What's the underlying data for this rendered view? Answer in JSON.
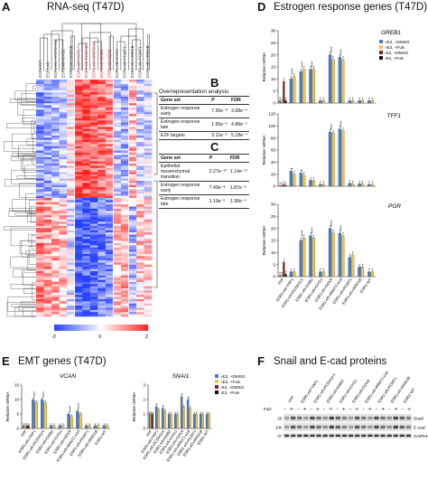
{
  "panels": {
    "A": {
      "letter": "A",
      "title": "RNA-seq (T47D)"
    },
    "B": {
      "letter": "B"
    },
    "C": {
      "letter": "C"
    },
    "D": {
      "letter": "D",
      "title": "Estrogen response genes (T47D)"
    },
    "E": {
      "letter": "E",
      "title": "EMT genes (T47D)"
    },
    "F": {
      "letter": "F",
      "title": "Snail and E-cad proteins"
    }
  },
  "heatmap": {
    "samples": [
      {
        "label": "ESR1-WT",
        "color": "#333333"
      },
      {
        "label": "ESR1-e6",
        "color": "#333333"
      },
      {
        "label": "ESR1-e6>ARNT2-e18",
        "color": "#333333"
      },
      {
        "label": "ESR1-e6>GYG1",
        "color": "#333333"
      },
      {
        "label": "ESR1-e6>ARID1B",
        "color": "#333333"
      },
      {
        "label": "ESR1-e6>YAP1",
        "color": "#d62728"
      },
      {
        "label": "ESR1-e6>PCDH11X",
        "color": "#d62728"
      },
      {
        "label": "ESR1-e6>ARNT2-e2",
        "color": "#d62728"
      },
      {
        "label": "ESR1-e6>DAB2",
        "color": "#d62728"
      },
      {
        "label": "ESR1-e6>SOX9",
        "color": "#d62728"
      },
      {
        "label": "ESR1-e6>GYG1",
        "color": "#333333"
      },
      {
        "label": "ESR1-e6>PCMT1",
        "color": "#333333"
      },
      {
        "label": "ESR1-e6>ARID1B",
        "color": "#333333"
      },
      {
        "label": "ESR1-e6>PCMT1",
        "color": "#333333"
      },
      {
        "label": "ESR1-e6>ARID1B",
        "color": "#333333"
      }
    ],
    "colorbar_ticks": [
      "-2",
      "0",
      "2"
    ]
  },
  "ora_title": "Overrepresentation analysis",
  "tableB": {
    "headers": [
      "Gene set",
      "P",
      "FDR"
    ],
    "rows": [
      [
        "Estrogen response early",
        "7.36e⁻⁸",
        "3.68e⁻⁶"
      ],
      [
        "Estrogen response late",
        "1.95e⁻⁶",
        "4.88e⁻⁵"
      ],
      [
        "E2F targets",
        "3.11e⁻⁵",
        "5.18e⁻⁴"
      ]
    ]
  },
  "tableC": {
    "headers": [
      "Gene set",
      "P",
      "FDR"
    ],
    "rows": [
      [
        "Epithelial mesenchymal transition",
        "2.27e⁻¹³",
        "1.14e⁻¹¹"
      ],
      [
        "Estrogen response early",
        "7.49e⁻⁸",
        "1.87e⁻⁶"
      ],
      [
        "Estrogen response late",
        "1.19e⁻⁵",
        "1.98e⁻⁴"
      ]
    ]
  },
  "legend_D": [
    {
      "label": "+E2, +DMSO",
      "color": "#4a7fc1"
    },
    {
      "label": "+E2, +Fulv",
      "color": "#f2c14e"
    },
    {
      "label": "-E2, +DMSO",
      "color": "#8b1a1a"
    },
    {
      "label": "-E2, +Fulv",
      "color": "#111111"
    }
  ],
  "legend_E": [
    {
      "label": "+E2, +DMSO",
      "color": "#4a7fc1"
    },
    {
      "label": "+E2, +Fulv",
      "color": "#f2c14e"
    },
    {
      "label": "-E2, +DMSO",
      "color": "#8b1a1a"
    },
    {
      "label": "-E2, +Fulv",
      "color": "#111111"
    }
  ],
  "x_categories": [
    "YFP",
    "ESR1-e6>YAP1",
    "ESR1-e6>PCDH11X",
    "ESR1-e6>DAB2",
    "ESR1-e6>GYG1",
    "ESR1-e6>SOX9",
    "ESR1-e6>ARNT2-e18",
    "ESR1-e6>PCMT1",
    "ESR1-e6>ARID1B",
    "ESR1-WT"
  ],
  "chart_data": [
    {
      "type": "bar",
      "title": "GREB1",
      "ylabel": "Relative mRNA",
      "ylim": [
        0,
        30
      ],
      "yticks": [
        0,
        5,
        10,
        15,
        20,
        25,
        30
      ],
      "categories": [
        "YFP",
        "ESR1-e6>YAP1",
        "ESR1-e6>PCDH11X",
        "ESR1-e6>DAB2",
        "ESR1-e6>GYG1",
        "ESR1-e6>SOX9",
        "ESR1-e6>ARNT2-e18",
        "ESR1-e6>PCMT1",
        "ESR1-e6>ARID1B",
        "ESR1-WT"
      ],
      "series": [
        {
          "name": "+E2, +DMSO",
          "values": [
            1,
            10,
            13,
            14,
            1,
            20,
            19,
            1,
            1,
            1
          ]
        },
        {
          "name": "+E2, +Fulv",
          "values": [
            0.5,
            11,
            14,
            14,
            1,
            18,
            18,
            1,
            1,
            1
          ]
        },
        {
          "name": "-E2, +DMSO",
          "values": [
            9,
            0,
            0,
            0,
            0,
            0,
            0,
            0,
            0,
            0
          ]
        },
        {
          "name": "-E2, +Fulv",
          "values": [
            1,
            0,
            0,
            0,
            0,
            0,
            0,
            0,
            0,
            0
          ]
        }
      ],
      "stars": [
        [
          "",
          "****",
          "****",
          "****",
          "",
          "****",
          "****",
          "",
          "",
          ""
        ]
      ]
    },
    {
      "type": "bar",
      "title": "TFF1",
      "ylabel": "Relative mRNA",
      "ylim": [
        0,
        120
      ],
      "yticks": [
        0,
        20,
        40,
        60,
        80,
        100,
        120
      ],
      "categories": [
        "YFP",
        "ESR1-e6>YAP1",
        "ESR1-e6>PCDH11X",
        "ESR1-e6>DAB2",
        "ESR1-e6>GYG1",
        "ESR1-e6>SOX9",
        "ESR1-e6>ARNT2-e18",
        "ESR1-e6>PCMT1",
        "ESR1-e6>ARID1B",
        "ESR1-WT"
      ],
      "series": [
        {
          "name": "+E2, +DMSO",
          "values": [
            1,
            25,
            22,
            10,
            3,
            90,
            95,
            5,
            4,
            3
          ]
        },
        {
          "name": "+E2, +Fulv",
          "values": [
            1,
            20,
            18,
            9,
            3,
            88,
            92,
            4,
            4,
            3
          ]
        },
        {
          "name": "-E2, +DMSO",
          "values": [
            3,
            0,
            0,
            0,
            0,
            0,
            0,
            0,
            0,
            0
          ]
        },
        {
          "name": "-E2, +Fulv",
          "values": [
            1,
            0,
            0,
            0,
            0,
            0,
            0,
            0,
            0,
            0
          ]
        }
      ],
      "stars": [
        [
          "",
          "*",
          "*",
          "",
          "",
          "****",
          "****",
          "",
          "",
          ""
        ]
      ]
    },
    {
      "type": "bar",
      "title": "PGR",
      "ylabel": "Relative mRNA",
      "ylim": [
        0,
        30
      ],
      "yticks": [
        0,
        5,
        10,
        15,
        20,
        25,
        30
      ],
      "categories": [
        "YFP",
        "ESR1-e6>YAP1",
        "ESR1-e6>PCDH11X",
        "ESR1-e6>DAB2",
        "ESR1-e6>GYG1",
        "ESR1-e6>SOX9",
        "ESR1-e6>ARNT2-e18",
        "ESR1-e6>PCMT1",
        "ESR1-e6>ARID1B",
        "ESR1-WT"
      ],
      "series": [
        {
          "name": "+E2, +DMSO",
          "values": [
            0.5,
            2,
            15,
            17,
            2,
            20,
            18,
            8,
            4,
            2
          ]
        },
        {
          "name": "+E2, +Fulv",
          "values": [
            0.5,
            2,
            16,
            16,
            2,
            18,
            17,
            9,
            4,
            2
          ]
        },
        {
          "name": "-E2, +DMSO",
          "values": [
            6,
            0,
            0,
            0,
            0,
            0,
            0,
            0,
            0,
            0
          ]
        },
        {
          "name": "-E2, +Fulv",
          "values": [
            1,
            0,
            0,
            0,
            0,
            0,
            0,
            0,
            0,
            0
          ]
        }
      ],
      "stars": [
        [
          "",
          "",
          "****",
          "****",
          "",
          "****",
          "****",
          "",
          "",
          ""
        ]
      ]
    },
    {
      "type": "bar",
      "title": "VCAN",
      "ylabel": "Relative mRNA",
      "ylim": [
        0,
        15
      ],
      "yticks": [
        0,
        5,
        10,
        15
      ],
      "categories": [
        "YFP",
        "ESR1-e6>YAP1",
        "ESR1-e6>PCDH11X",
        "ESR1-e6>DAB2",
        "ESR1-e6>GYG1",
        "ESR1-e6>SOX9",
        "ESR1-e6>ARNT2-e18",
        "ESR1-e6>PCMT1",
        "ESR1-e6>ARID1B",
        "ESR1-WT"
      ],
      "series": [
        {
          "name": "+E2, +DMSO",
          "values": [
            1,
            10,
            10,
            1,
            1,
            5,
            6,
            1,
            1,
            1
          ]
        },
        {
          "name": "+E2, +Fulv",
          "values": [
            1,
            9,
            9,
            1,
            1,
            4,
            5,
            1,
            1,
            1
          ]
        },
        {
          "name": "-E2, +DMSO",
          "values": [
            1,
            0,
            0,
            0,
            0,
            0,
            0,
            0,
            0,
            0
          ]
        },
        {
          "name": "-E2, +Fulv",
          "values": [
            1,
            0,
            0,
            0,
            0,
            0,
            0,
            0,
            0,
            0
          ]
        }
      ],
      "stars": [
        [
          "",
          "****",
          "****",
          "",
          "",
          "****",
          "****",
          "",
          "",
          ""
        ]
      ]
    },
    {
      "type": "bar",
      "title": "SNAI1",
      "ylabel": "Relative mRNA",
      "ylim": [
        0,
        3
      ],
      "yticks": [
        0,
        1,
        2,
        3
      ],
      "categories": [
        "YFP",
        "ESR1-e6>YAP1",
        "ESR1-e6>PCDH11X",
        "ESR1-e6>DAB2",
        "ESR1-e6>GYG1",
        "ESR1-e6>SOX9",
        "ESR1-e6>ARNT2-e18",
        "ESR1-e6>PCMT1",
        "ESR1-e6>ARID1B",
        "ESR1-WT"
      ],
      "series": [
        {
          "name": "+E2, +DMSO",
          "values": [
            1,
            1.5,
            1.4,
            1,
            1,
            2.2,
            2,
            1,
            1,
            1
          ]
        },
        {
          "name": "+E2, +Fulv",
          "values": [
            1,
            1.3,
            1.2,
            1,
            1,
            1.5,
            1.4,
            1,
            1,
            1
          ]
        },
        {
          "name": "-E2, +DMSO",
          "values": [
            1,
            0,
            0,
            0,
            0,
            0,
            0,
            0,
            0,
            0
          ]
        },
        {
          "name": "-E2, +Fulv",
          "values": [
            1,
            0,
            0,
            0,
            0,
            0,
            0,
            0,
            0,
            0
          ]
        }
      ],
      "stars": [
        [
          "",
          "*",
          "*",
          "",
          "",
          "*",
          "*",
          "",
          "",
          ""
        ]
      ]
    }
  ],
  "blot": {
    "lanes": [
      "YFP",
      "ESR1-e6>YAP1",
      "ESR1-e6>PCDH11X",
      "ESR1-e6>DAB2",
      "ESR1-e6>GYG1",
      "ESR1-e6>SOX9",
      "ESR1-e6>ARNT2-e18",
      "ESR1-e6>PCMT1",
      "ESR1-e6>ARID1B",
      "ESR1-WT"
    ],
    "fulv_label": "Fulv",
    "fulv_marks": "- + - + - + - + - + - + - + - + - + - +",
    "row_labels": [
      "Snail",
      "E-cad",
      "GAPDH"
    ],
    "mw_labels": [
      "25",
      "100",
      "37"
    ]
  }
}
